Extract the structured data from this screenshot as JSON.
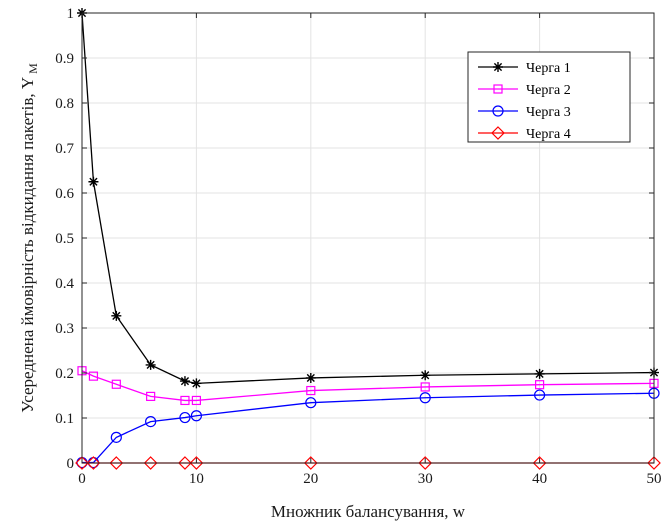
{
  "chart_data": {
    "type": "line",
    "title": "",
    "xlabel": "Множник балансування, w",
    "ylabel_main": "Усереднена ймовірність відкидання пакетів,  Y",
    "ylabel_subscript": "M",
    "xlim": [
      0,
      50
    ],
    "ylim": [
      0,
      1
    ],
    "xticks": [
      0,
      10,
      20,
      30,
      40,
      50
    ],
    "yticks": [
      0,
      0.1,
      0.2,
      0.3,
      0.4,
      0.5,
      0.6,
      0.7,
      0.8,
      0.9,
      1
    ],
    "ytick_labels": [
      "0",
      "0.1",
      "0.2",
      "0.3",
      "0.4",
      "0.5",
      "0.6",
      "0.7",
      "0.8",
      "0.9",
      "1"
    ],
    "grid": true,
    "legend_position": "top-right",
    "x": [
      0,
      1,
      3,
      6,
      9,
      10,
      20,
      30,
      40,
      50
    ],
    "series": [
      {
        "name": "Черга 1",
        "color": "#000000",
        "marker": "asterisk",
        "values": [
          1.0,
          0.625,
          0.327,
          0.218,
          0.182,
          0.177,
          0.189,
          0.195,
          0.198,
          0.201
        ]
      },
      {
        "name": "Черга 2",
        "color": "#ff00ff",
        "marker": "square",
        "values": [
          0.205,
          0.193,
          0.175,
          0.148,
          0.139,
          0.139,
          0.161,
          0.169,
          0.174,
          0.177
        ]
      },
      {
        "name": "Черга 3",
        "color": "#0000ff",
        "marker": "circle",
        "values": [
          0.001,
          0.001,
          0.057,
          0.092,
          0.101,
          0.105,
          0.134,
          0.145,
          0.151,
          0.155
        ]
      },
      {
        "name": "Черга 4",
        "color": "#ff0000",
        "marker": "diamond",
        "values": [
          0,
          0,
          0,
          0,
          0,
          0,
          0,
          0,
          0,
          0
        ]
      }
    ]
  }
}
